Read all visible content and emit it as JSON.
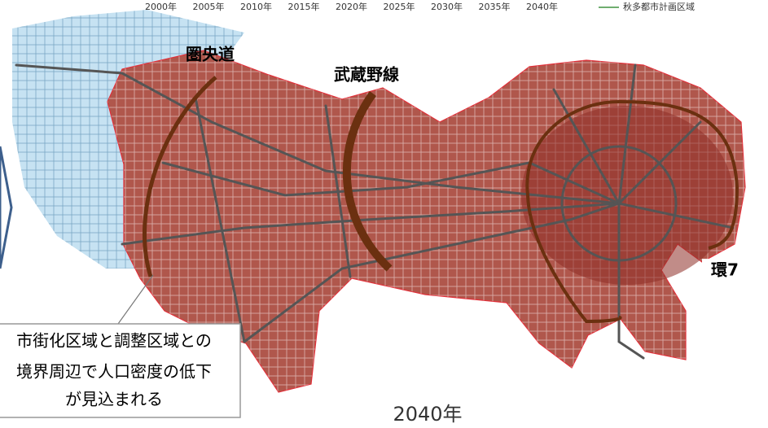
{
  "header": {
    "timeline": [
      "2000年",
      "2005年",
      "2010年",
      "2015年",
      "2020年",
      "2025年",
      "2030年",
      "2035年",
      "2040年"
    ],
    "legend": "秋多都市計画区域"
  },
  "labels": {
    "ken_o_do": "圏央道",
    "musashino": "武蔵野線",
    "kan7": "環7"
  },
  "callout": [
    "市街化区域と調整区域との",
    "境界周辺で人口密度の低下",
    "が見込まれる"
  ],
  "year": "2040年"
}
